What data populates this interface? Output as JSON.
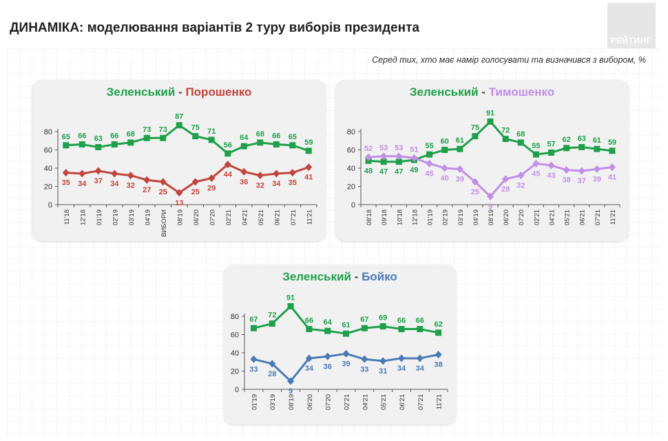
{
  "title": "ДИНАМІКА: моделювання варіантів 2 туру виборів президента",
  "logo_text": "РЕЙТИНГ",
  "subtitle": "Серед тих, хто має намір голосувати  та визначився з вибором, %",
  "chart_data": [
    {
      "type": "line",
      "title_a": "Зеленський",
      "title_sep": "-",
      "title_b": "Порошенко",
      "categories": [
        "11'18",
        "12'18",
        "01'19",
        "02'19",
        "03'19",
        "04'19",
        "ВИБОРИ",
        "08'19",
        "06'20",
        "07'20",
        "02'21",
        "04'21",
        "05'21",
        "06'21",
        "07'21",
        "11'21"
      ],
      "ylim": [
        0,
        80
      ],
      "yticks": [
        0,
        20,
        40,
        60,
        80
      ],
      "series": [
        {
          "name": "Зеленський",
          "color": "#1ea04a",
          "marker": "square",
          "label_pos": "above",
          "values": [
            65,
            66,
            63,
            66,
            68,
            73,
            73,
            87,
            75,
            71,
            56,
            64,
            68,
            66,
            65,
            59
          ]
        },
        {
          "name": "Порошенко",
          "color": "#c0453c",
          "marker": "diamond",
          "label_pos": "below",
          "values": [
            35,
            34,
            37,
            34,
            32,
            27,
            25,
            13,
            25,
            29,
            44,
            36,
            32,
            34,
            35,
            41
          ]
        }
      ]
    },
    {
      "type": "line",
      "title_a": "Зеленський",
      "title_sep": "-",
      "title_b": "Тимошенко",
      "categories": [
        "08'18",
        "09'18",
        "10'18",
        "12'18",
        "01'19",
        "02'19",
        "03'19",
        "04'19",
        "08'19",
        "06'20",
        "07'20",
        "02'21",
        "04'21",
        "05'21",
        "06'21",
        "07'21",
        "11'21"
      ],
      "ylim": [
        0,
        80
      ],
      "yticks": [
        0,
        20,
        40,
        60,
        80
      ],
      "series": [
        {
          "name": "Зеленський",
          "color": "#1ea04a",
          "marker": "square",
          "label_pos": "mixed",
          "values": [
            48,
            47,
            47,
            49,
            55,
            60,
            61,
            75,
            91,
            72,
            68,
            55,
            57,
            62,
            63,
            61,
            59
          ]
        },
        {
          "name": "Тимошенко",
          "color": "#c28ee8",
          "marker": "diamond",
          "label_pos": "mixed",
          "values": [
            52,
            53,
            53,
            51,
            45,
            40,
            39,
            25,
            9,
            28,
            32,
            45,
            43,
            38,
            37,
            39,
            41
          ]
        }
      ]
    },
    {
      "type": "line",
      "title_a": "Зеленський",
      "title_sep": "-",
      "title_b": "Бойко",
      "categories": [
        "01'19",
        "03'19",
        "08'19",
        "06'20",
        "07'20",
        "02'21",
        "04'21",
        "05'21",
        "06'21",
        "07'21",
        "11'21"
      ],
      "ylim": [
        0,
        80
      ],
      "yticks": [
        0,
        20,
        40,
        60,
        80
      ],
      "series": [
        {
          "name": "Зеленський",
          "color": "#1ea04a",
          "marker": "square",
          "label_pos": "above",
          "values": [
            67,
            72,
            91,
            66,
            64,
            61,
            67,
            69,
            66,
            66,
            62
          ]
        },
        {
          "name": "Бойко",
          "color": "#4a7ab5",
          "marker": "diamond",
          "label_pos": "below",
          "values": [
            33,
            28,
            9,
            34,
            36,
            39,
            33,
            31,
            34,
            34,
            38
          ]
        }
      ]
    }
  ]
}
